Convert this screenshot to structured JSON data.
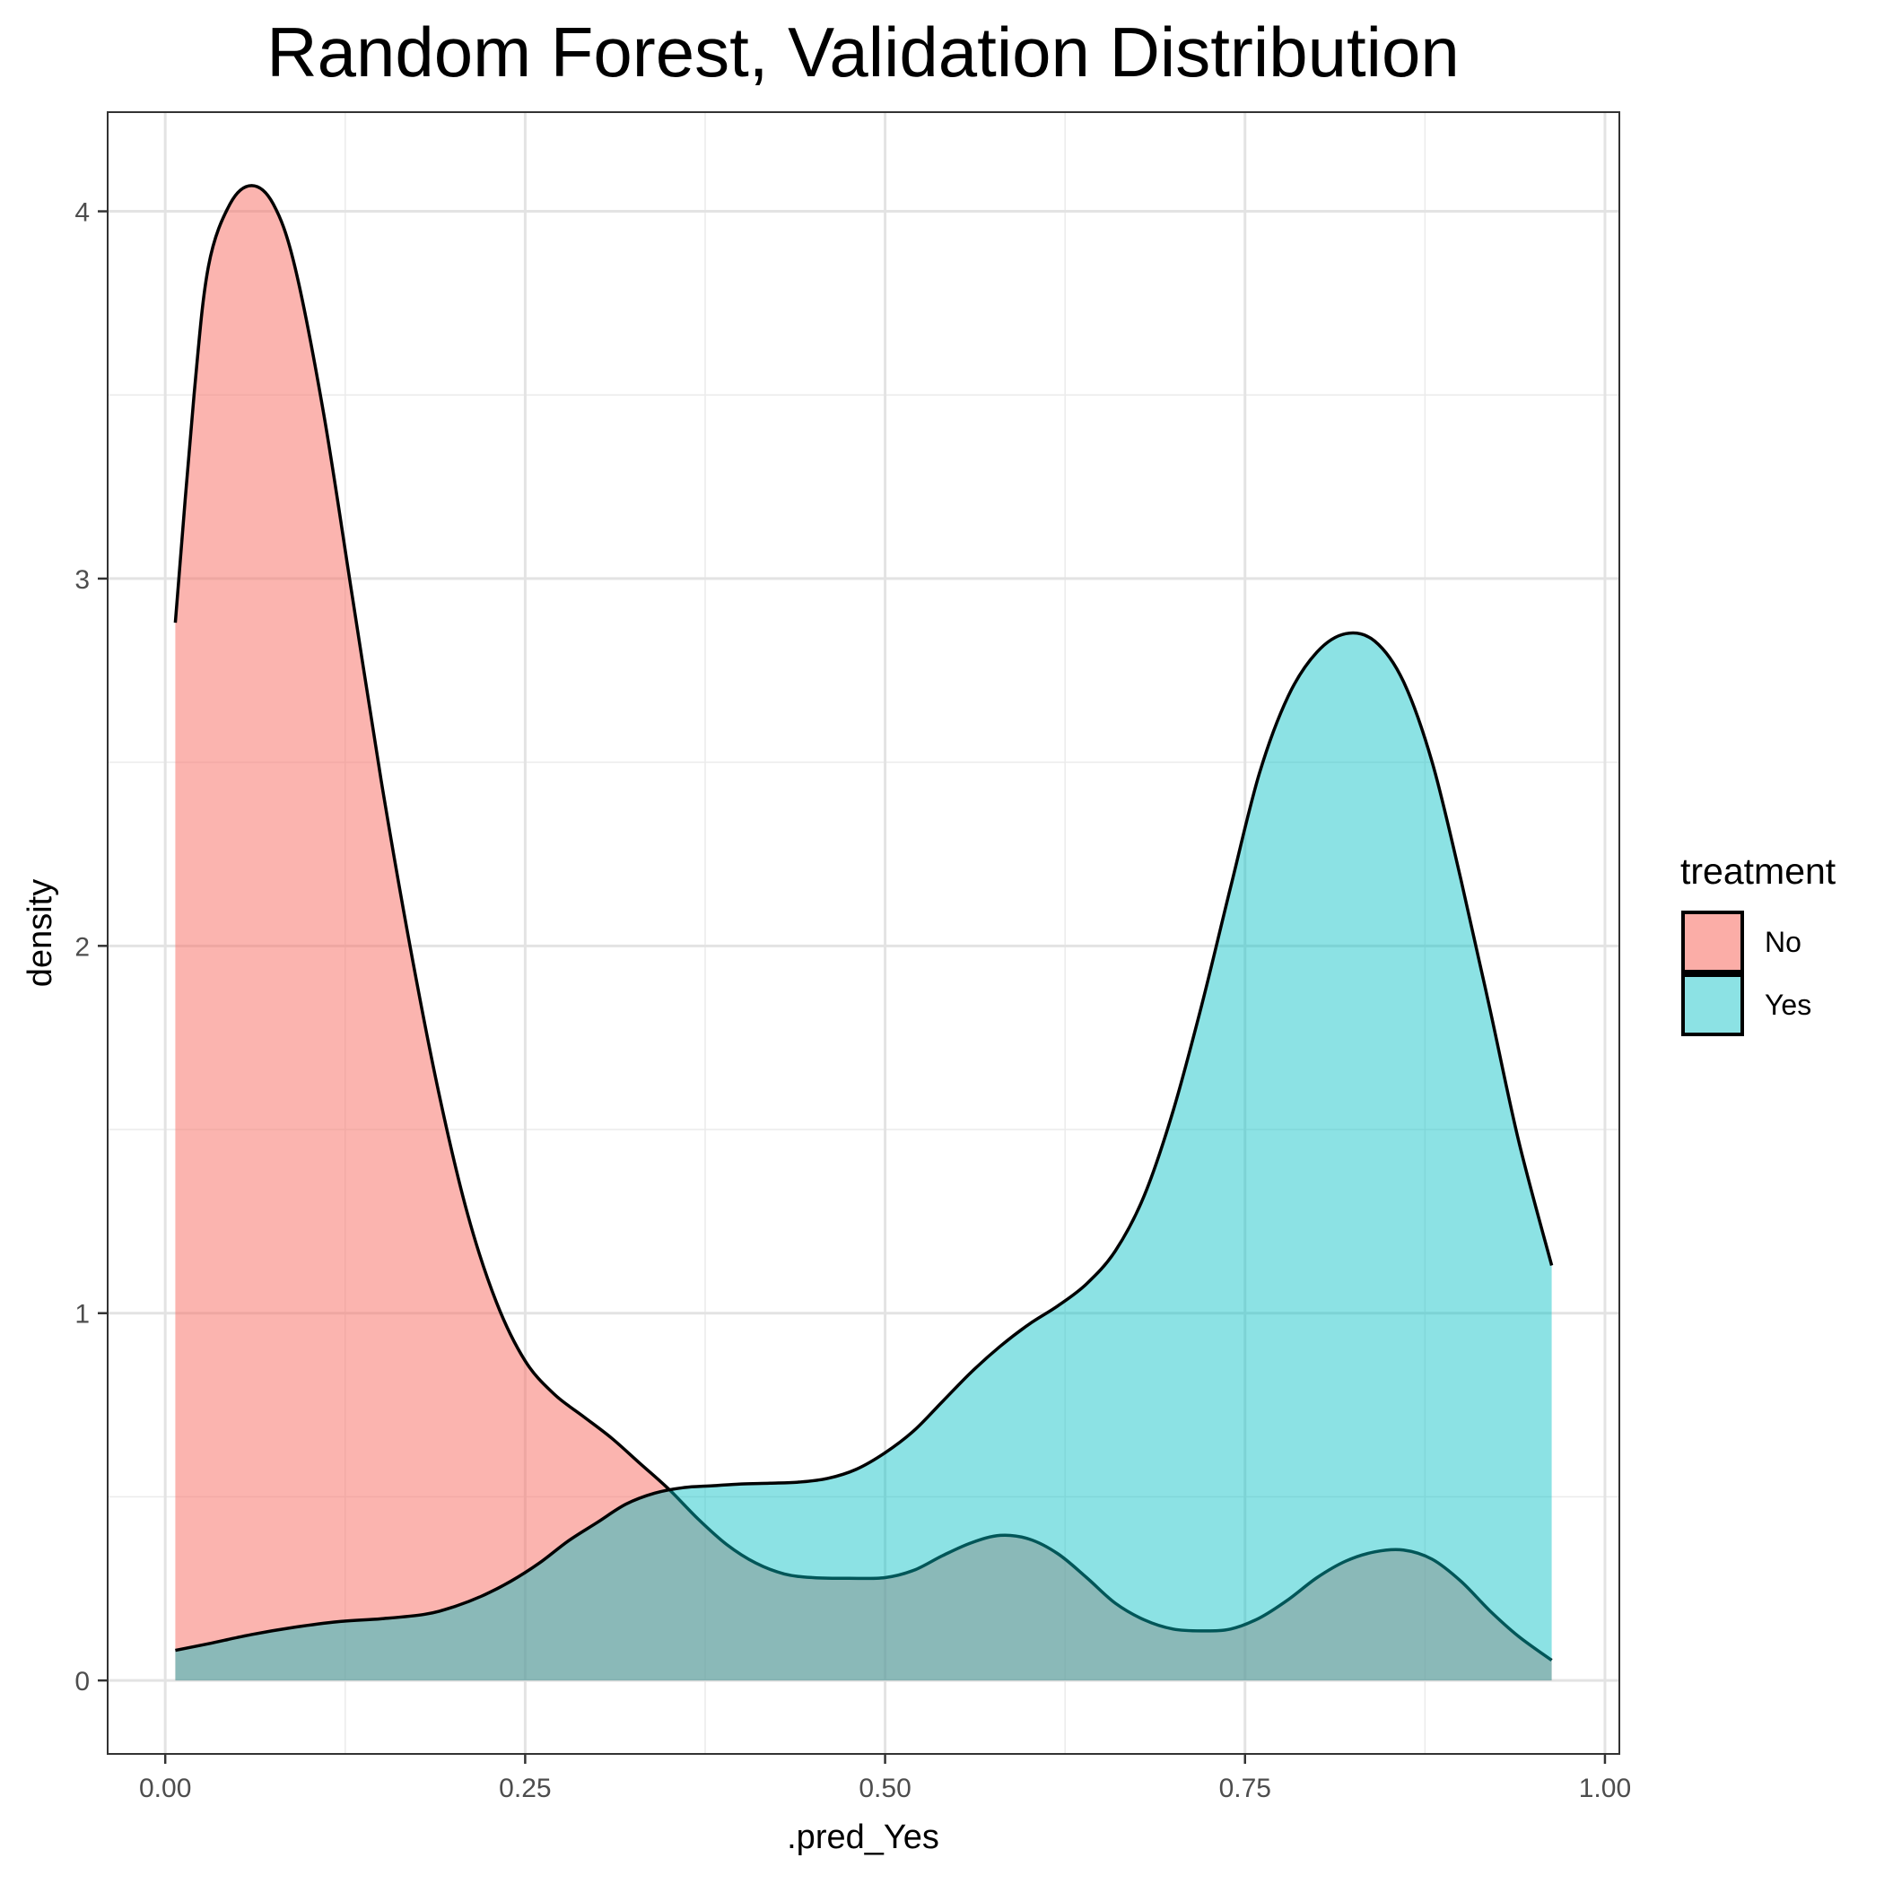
{
  "chart_data": {
    "type": "area",
    "title": "Random Forest, Validation Distribution",
    "xlabel": ".pred_Yes",
    "ylabel": "density",
    "xlim": [
      -0.04,
      1.01
    ],
    "ylim": [
      -0.2,
      4.27
    ],
    "x_ticks": [
      "0.00",
      "0.25",
      "0.50",
      "0.75",
      "1.00"
    ],
    "x_tick_values": [
      0,
      0.25,
      0.5,
      0.75,
      1.0
    ],
    "y_ticks": [
      "0",
      "1",
      "2",
      "3",
      "4"
    ],
    "y_tick_values": [
      0,
      1,
      2,
      3,
      4
    ],
    "grid": true,
    "legend": {
      "title": "treatment",
      "placement": "right",
      "entries": [
        "No",
        "Yes"
      ]
    },
    "series": [
      {
        "name": "No",
        "color": "#F8766D",
        "points": [
          [
            0.007,
            2.88
          ],
          [
            0.02,
            3.5
          ],
          [
            0.03,
            3.85
          ],
          [
            0.045,
            4.02
          ],
          [
            0.06,
            4.07
          ],
          [
            0.075,
            4.02
          ],
          [
            0.09,
            3.85
          ],
          [
            0.11,
            3.45
          ],
          [
            0.13,
            2.95
          ],
          [
            0.15,
            2.45
          ],
          [
            0.17,
            2.0
          ],
          [
            0.19,
            1.6
          ],
          [
            0.21,
            1.27
          ],
          [
            0.23,
            1.03
          ],
          [
            0.25,
            0.87
          ],
          [
            0.27,
            0.78
          ],
          [
            0.29,
            0.72
          ],
          [
            0.31,
            0.66
          ],
          [
            0.33,
            0.59
          ],
          [
            0.35,
            0.52
          ],
          [
            0.37,
            0.44
          ],
          [
            0.39,
            0.37
          ],
          [
            0.41,
            0.32
          ],
          [
            0.43,
            0.29
          ],
          [
            0.45,
            0.28
          ],
          [
            0.475,
            0.278
          ],
          [
            0.5,
            0.28
          ],
          [
            0.52,
            0.3
          ],
          [
            0.54,
            0.34
          ],
          [
            0.56,
            0.375
          ],
          [
            0.58,
            0.395
          ],
          [
            0.6,
            0.385
          ],
          [
            0.62,
            0.345
          ],
          [
            0.64,
            0.28
          ],
          [
            0.66,
            0.21
          ],
          [
            0.68,
            0.165
          ],
          [
            0.7,
            0.14
          ],
          [
            0.72,
            0.135
          ],
          [
            0.74,
            0.14
          ],
          [
            0.76,
            0.17
          ],
          [
            0.78,
            0.22
          ],
          [
            0.8,
            0.28
          ],
          [
            0.82,
            0.325
          ],
          [
            0.84,
            0.35
          ],
          [
            0.86,
            0.355
          ],
          [
            0.88,
            0.33
          ],
          [
            0.9,
            0.27
          ],
          [
            0.92,
            0.19
          ],
          [
            0.94,
            0.12
          ],
          [
            0.963,
            0.055
          ]
        ]
      },
      {
        "name": "Yes",
        "color": "#00BFC4",
        "points": [
          [
            0.007,
            0.082
          ],
          [
            0.03,
            0.1
          ],
          [
            0.06,
            0.125
          ],
          [
            0.09,
            0.145
          ],
          [
            0.12,
            0.16
          ],
          [
            0.15,
            0.168
          ],
          [
            0.18,
            0.18
          ],
          [
            0.2,
            0.2
          ],
          [
            0.22,
            0.23
          ],
          [
            0.24,
            0.27
          ],
          [
            0.26,
            0.32
          ],
          [
            0.28,
            0.38
          ],
          [
            0.3,
            0.43
          ],
          [
            0.32,
            0.48
          ],
          [
            0.34,
            0.51
          ],
          [
            0.36,
            0.525
          ],
          [
            0.38,
            0.53
          ],
          [
            0.4,
            0.535
          ],
          [
            0.42,
            0.537
          ],
          [
            0.44,
            0.54
          ],
          [
            0.46,
            0.55
          ],
          [
            0.48,
            0.575
          ],
          [
            0.5,
            0.62
          ],
          [
            0.52,
            0.68
          ],
          [
            0.54,
            0.76
          ],
          [
            0.56,
            0.84
          ],
          [
            0.58,
            0.91
          ],
          [
            0.6,
            0.97
          ],
          [
            0.62,
            1.02
          ],
          [
            0.64,
            1.08
          ],
          [
            0.66,
            1.17
          ],
          [
            0.68,
            1.32
          ],
          [
            0.7,
            1.55
          ],
          [
            0.72,
            1.84
          ],
          [
            0.74,
            2.16
          ],
          [
            0.76,
            2.47
          ],
          [
            0.78,
            2.68
          ],
          [
            0.8,
            2.8
          ],
          [
            0.82,
            2.85
          ],
          [
            0.84,
            2.83
          ],
          [
            0.86,
            2.72
          ],
          [
            0.88,
            2.5
          ],
          [
            0.9,
            2.18
          ],
          [
            0.92,
            1.83
          ],
          [
            0.94,
            1.47
          ],
          [
            0.963,
            1.13
          ]
        ]
      }
    ]
  }
}
